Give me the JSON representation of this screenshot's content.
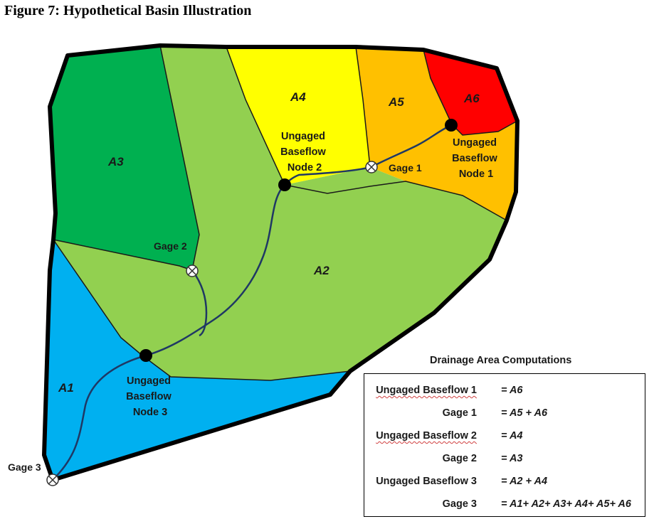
{
  "figure_title": "Figure 7: Hypothetical Basin Illustration",
  "areas": {
    "a1": {
      "label": "A1",
      "color": "#00b0f0"
    },
    "a2": {
      "label": "A2",
      "color": "#92d050"
    },
    "a3": {
      "label": "A3",
      "color": "#00b050"
    },
    "a4": {
      "label": "A4",
      "color": "#ffff00"
    },
    "a5": {
      "label": "A5",
      "color": "#ffc000"
    },
    "a6": {
      "label": "A6",
      "color": "#ff0000"
    }
  },
  "nodes": {
    "node1": [
      "Ungaged",
      "Baseflow",
      "Node 1"
    ],
    "node2": [
      "Ungaged",
      "Baseflow",
      "Node 2"
    ],
    "node3": [
      "Ungaged",
      "Baseflow",
      "Node 3"
    ]
  },
  "gages": {
    "gage1": "Gage 1",
    "gage2": "Gage 2",
    "gage3": "Gage 3"
  },
  "stream_color": "#1f3864",
  "computations": {
    "title": "Drainage Area Computations",
    "rows": [
      {
        "name": "Ungaged Baseflow 1",
        "eq": "= A6"
      },
      {
        "name": "Gage 1",
        "eq": "= A5 + A6"
      },
      {
        "name": "Ungaged Baseflow 2",
        "eq": "= A4"
      },
      {
        "name": "Gage 2",
        "eq": "= A3"
      },
      {
        "name": "Ungaged Baseflow 3",
        "eq": "= A2 + A4"
      },
      {
        "name": "Gage 3",
        "eq": "= A1+ A2+ A3+ A4+ A5+ A6"
      }
    ]
  }
}
